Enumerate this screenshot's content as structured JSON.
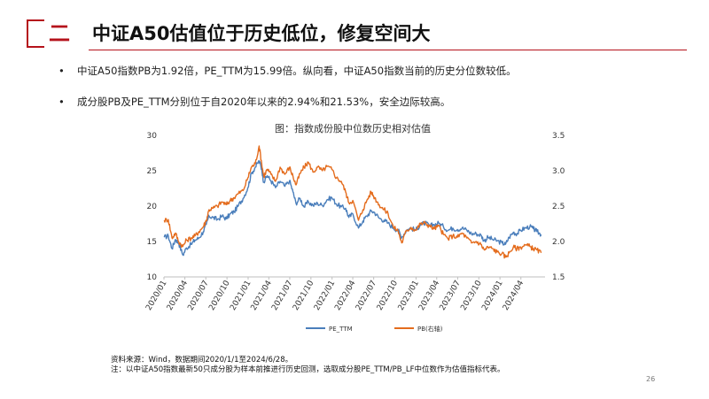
{
  "header": {
    "section_number": "二",
    "title": "中证A50估值位于历史低位，修复空间大"
  },
  "bullets": [
    {
      "marker": "•",
      "text": "中证A50指数PB为1.92倍，PE_TTM为15.99倍。纵向看，中证A50指数当前的历史分位数较低。"
    },
    {
      "marker": "•",
      "text": "成分股PB及PE_TTM分别位于自2020年以来的2.94%和21.53%，安全边际较高。"
    }
  ],
  "chart_data": {
    "type": "line",
    "title": "图：指数成份股中位数历史相对估值",
    "x_ticks": [
      "2020/01",
      "2020/04",
      "2020/07",
      "2020/10",
      "2021/01",
      "2021/04",
      "2021/07",
      "2021/10",
      "2022/01",
      "2022/04",
      "2022/07",
      "2022/10",
      "2023/01",
      "2023/04",
      "2023/07",
      "2023/10",
      "2024/01",
      "2024/04"
    ],
    "y_left": {
      "range": [
        10,
        30
      ],
      "ticks": [
        "10",
        "15",
        "20",
        "25",
        "30"
      ]
    },
    "y_right": {
      "range": [
        1.5,
        3.5
      ],
      "ticks": [
        "1.5",
        "2.0",
        "2.5",
        "3.0",
        "3.5"
      ]
    },
    "grid": false,
    "legend_position": "bottom",
    "series": [
      {
        "name": "PE_TTM",
        "axis": "left",
        "color": "#4a7ebb",
        "points": [
          [
            "2020/01/02",
            15.6
          ],
          [
            "2020/01/20",
            15.8
          ],
          [
            "2020/02/05",
            14.0
          ],
          [
            "2020/02/20",
            15.3
          ],
          [
            "2020/03/05",
            14.8
          ],
          [
            "2020/03/23",
            13.1
          ],
          [
            "2020/04/08",
            14.1
          ],
          [
            "2020/04/28",
            14.6
          ],
          [
            "2020/05/15",
            15.2
          ],
          [
            "2020/06/01",
            15.5
          ],
          [
            "2020/06/20",
            16.4
          ],
          [
            "2020/07/03",
            17.4
          ],
          [
            "2020/07/15",
            18.6
          ],
          [
            "2020/08/01",
            18.4
          ],
          [
            "2020/08/20",
            18.1
          ],
          [
            "2020/09/10",
            18.6
          ],
          [
            "2020/09/28",
            18.2
          ],
          [
            "2020/10/15",
            18.9
          ],
          [
            "2020/11/01",
            19.2
          ],
          [
            "2020/11/20",
            20.1
          ],
          [
            "2020/12/10",
            21.1
          ],
          [
            "2020/12/31",
            22.6
          ],
          [
            "2021/01/15",
            24.6
          ],
          [
            "2021/02/01",
            25.5
          ],
          [
            "2021/02/18",
            26.4
          ],
          [
            "2021/03/01",
            25.2
          ],
          [
            "2021/03/10",
            23.4
          ],
          [
            "2021/03/25",
            24.3
          ],
          [
            "2021/04/10",
            23.6
          ],
          [
            "2021/04/30",
            22.6
          ],
          [
            "2021/05/20",
            23.5
          ],
          [
            "2021/06/10",
            22.8
          ],
          [
            "2021/06/30",
            23.6
          ],
          [
            "2021/07/15",
            22.0
          ],
          [
            "2021/07/28",
            20.4
          ],
          [
            "2021/08/15",
            21.1
          ],
          [
            "2021/09/01",
            19.9
          ],
          [
            "2021/09/20",
            20.6
          ],
          [
            "2021/10/10",
            20.1
          ],
          [
            "2021/10/30",
            20.4
          ],
          [
            "2021/11/20",
            20.1
          ],
          [
            "2021/12/10",
            20.9
          ],
          [
            "2021/12/31",
            21.2
          ],
          [
            "2022/01/20",
            20.3
          ],
          [
            "2022/02/10",
            19.9
          ],
          [
            "2022/03/01",
            19.7
          ],
          [
            "2022/03/15",
            18.4
          ],
          [
            "2022/04/01",
            18.9
          ],
          [
            "2022/04/26",
            16.9
          ],
          [
            "2022/05/15",
            17.9
          ],
          [
            "2022/06/01",
            18.6
          ],
          [
            "2022/06/20",
            19.3
          ],
          [
            "2022/07/05",
            19.1
          ],
          [
            "2022/07/25",
            18.3
          ],
          [
            "2022/08/15",
            18.0
          ],
          [
            "2022/09/01",
            17.6
          ],
          [
            "2022/09/25",
            16.9
          ],
          [
            "2022/10/15",
            16.6
          ],
          [
            "2022/10/31",
            15.6
          ],
          [
            "2022/11/20",
            16.6
          ],
          [
            "2022/12/10",
            16.9
          ],
          [
            "2022/12/31",
            16.6
          ],
          [
            "2023/01/20",
            17.4
          ],
          [
            "2023/02/10",
            17.6
          ],
          [
            "2023/03/01",
            17.2
          ],
          [
            "2023/03/20",
            17.4
          ],
          [
            "2023/04/10",
            17.6
          ],
          [
            "2023/04/30",
            17.1
          ],
          [
            "2023/05/20",
            16.6
          ],
          [
            "2023/06/10",
            16.9
          ],
          [
            "2023/06/30",
            16.7
          ],
          [
            "2023/07/20",
            16.9
          ],
          [
            "2023/08/10",
            16.6
          ],
          [
            "2023/08/30",
            16.1
          ],
          [
            "2023/09/20",
            16.1
          ],
          [
            "2023/10/10",
            15.9
          ],
          [
            "2023/10/25",
            15.1
          ],
          [
            "2023/11/10",
            15.6
          ],
          [
            "2023/11/30",
            15.3
          ],
          [
            "2023/12/20",
            15.1
          ],
          [
            "2024/01/10",
            14.8
          ],
          [
            "2024/01/25",
            14.6
          ],
          [
            "2024/02/10",
            15.6
          ],
          [
            "2024/02/28",
            16.3
          ],
          [
            "2024/03/15",
            16.1
          ],
          [
            "2024/03/31",
            16.6
          ],
          [
            "2024/04/20",
            16.9
          ],
          [
            "2024/05/10",
            17.1
          ],
          [
            "2024/05/25",
            16.8
          ],
          [
            "2024/06/10",
            16.4
          ],
          [
            "2024/06/28",
            16.0
          ]
        ]
      },
      {
        "name": "PB(右轴)",
        "axis": "right",
        "color": "#e46c1d",
        "points": [
          [
            "2020/01/02",
            2.3
          ],
          [
            "2020/01/20",
            2.31
          ],
          [
            "2020/02/05",
            2.05
          ],
          [
            "2020/02/20",
            2.12
          ],
          [
            "2020/03/05",
            2.0
          ],
          [
            "2020/03/23",
            1.93
          ],
          [
            "2020/04/08",
            2.02
          ],
          [
            "2020/04/28",
            2.05
          ],
          [
            "2020/05/15",
            2.08
          ],
          [
            "2020/06/01",
            2.14
          ],
          [
            "2020/06/20",
            2.21
          ],
          [
            "2020/07/03",
            2.3
          ],
          [
            "2020/07/15",
            2.45
          ],
          [
            "2020/08/01",
            2.47
          ],
          [
            "2020/08/20",
            2.5
          ],
          [
            "2020/09/10",
            2.56
          ],
          [
            "2020/09/28",
            2.52
          ],
          [
            "2020/10/15",
            2.58
          ],
          [
            "2020/11/01",
            2.62
          ],
          [
            "2020/11/20",
            2.68
          ],
          [
            "2020/12/10",
            2.72
          ],
          [
            "2020/12/31",
            2.9
          ],
          [
            "2021/01/15",
            3.05
          ],
          [
            "2021/02/01",
            3.1
          ],
          [
            "2021/02/18",
            3.35
          ],
          [
            "2021/03/01",
            3.1
          ],
          [
            "2021/03/10",
            2.92
          ],
          [
            "2021/03/25",
            3.02
          ],
          [
            "2021/04/10",
            2.95
          ],
          [
            "2021/04/30",
            2.85
          ],
          [
            "2021/05/20",
            3.05
          ],
          [
            "2021/06/10",
            2.95
          ],
          [
            "2021/06/30",
            3.05
          ],
          [
            "2021/07/15",
            2.92
          ],
          [
            "2021/07/28",
            2.8
          ],
          [
            "2021/08/15",
            2.96
          ],
          [
            "2021/09/01",
            3.05
          ],
          [
            "2021/09/20",
            3.12
          ],
          [
            "2021/10/10",
            2.98
          ],
          [
            "2021/10/30",
            3.05
          ],
          [
            "2021/11/20",
            3.0
          ],
          [
            "2021/12/10",
            3.06
          ],
          [
            "2021/12/31",
            3.02
          ],
          [
            "2022/01/20",
            2.9
          ],
          [
            "2022/02/10",
            2.85
          ],
          [
            "2022/03/01",
            2.7
          ],
          [
            "2022/03/15",
            2.55
          ],
          [
            "2022/04/01",
            2.58
          ],
          [
            "2022/04/26",
            2.3
          ],
          [
            "2022/05/15",
            2.45
          ],
          [
            "2022/06/01",
            2.58
          ],
          [
            "2022/06/20",
            2.7
          ],
          [
            "2022/07/05",
            2.62
          ],
          [
            "2022/07/25",
            2.52
          ],
          [
            "2022/08/15",
            2.45
          ],
          [
            "2022/09/01",
            2.4
          ],
          [
            "2022/09/25",
            2.2
          ],
          [
            "2022/10/15",
            2.15
          ],
          [
            "2022/10/31",
            1.98
          ],
          [
            "2022/11/20",
            2.15
          ],
          [
            "2022/12/10",
            2.2
          ],
          [
            "2022/12/31",
            2.16
          ],
          [
            "2023/01/20",
            2.25
          ],
          [
            "2023/02/10",
            2.26
          ],
          [
            "2023/03/01",
            2.22
          ],
          [
            "2023/03/20",
            2.18
          ],
          [
            "2023/04/10",
            2.22
          ],
          [
            "2023/04/30",
            2.1
          ],
          [
            "2023/05/20",
            2.04
          ],
          [
            "2023/06/10",
            2.08
          ],
          [
            "2023/06/30",
            2.06
          ],
          [
            "2023/07/20",
            2.12
          ],
          [
            "2023/08/10",
            2.05
          ],
          [
            "2023/08/30",
            1.98
          ],
          [
            "2023/09/20",
            2.0
          ],
          [
            "2023/10/10",
            1.96
          ],
          [
            "2023/10/25",
            1.88
          ],
          [
            "2023/11/10",
            1.92
          ],
          [
            "2023/11/30",
            1.9
          ],
          [
            "2023/12/20",
            1.85
          ],
          [
            "2024/01/10",
            1.83
          ],
          [
            "2024/01/25",
            1.78
          ],
          [
            "2024/02/10",
            1.84
          ],
          [
            "2024/02/28",
            1.92
          ],
          [
            "2024/03/15",
            1.9
          ],
          [
            "2024/03/31",
            1.92
          ],
          [
            "2024/04/20",
            1.95
          ],
          [
            "2024/05/10",
            1.93
          ],
          [
            "2024/05/25",
            1.9
          ],
          [
            "2024/06/10",
            1.88
          ],
          [
            "2024/06/28",
            1.84
          ]
        ]
      }
    ]
  },
  "footnote": {
    "line1": "资料来源：Wind，数据期间2020/1/1至2024/6/28。",
    "line2": "注：以中证A50指数最新50只成分股为样本前推进行历史回测，选取成分股PE_TTM/PB_LF中位数作为估值指标代表。"
  },
  "page_number": "26"
}
